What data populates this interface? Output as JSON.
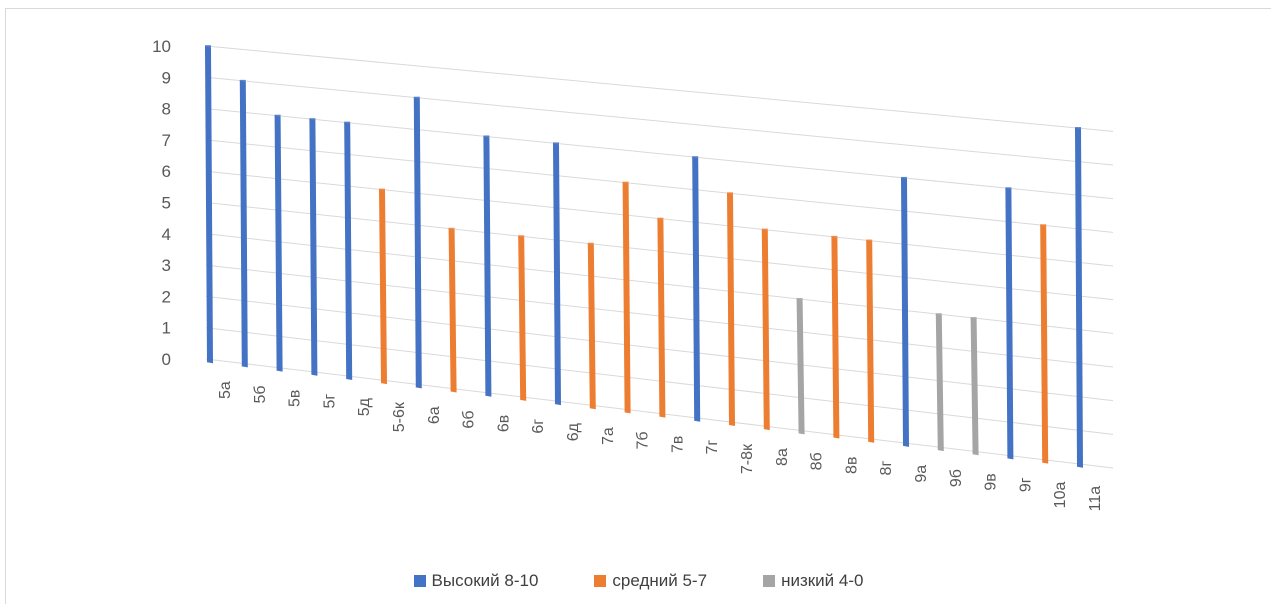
{
  "chart_data": {
    "type": "bar",
    "title": "",
    "xlabel": "",
    "ylabel": "",
    "ylim": [
      0,
      10
    ],
    "yticks": [
      "0",
      "1",
      "2",
      "3",
      "4",
      "5",
      "6",
      "7",
      "8",
      "9",
      "10"
    ],
    "grid": true,
    "legend_position": "bottom",
    "categories": [
      "5а",
      "5б",
      "5в",
      "5г",
      "5д",
      "5-6к",
      "6а",
      "6б",
      "6в",
      "6г",
      "6д",
      "7а",
      "7б",
      "7в",
      "7г",
      "7-8к",
      "8а",
      "8б",
      "8в",
      "8г",
      "9а",
      "9б",
      "9в",
      "9г",
      "10а",
      "11а"
    ],
    "values": [
      10,
      9,
      8,
      8,
      8,
      6,
      9,
      5,
      8,
      5,
      8,
      5,
      7,
      6,
      8,
      7,
      6,
      4,
      6,
      6,
      8,
      4,
      4,
      8,
      7,
      10
    ],
    "groups": [
      "high",
      "high",
      "high",
      "high",
      "high",
      "mid",
      "high",
      "mid",
      "high",
      "mid",
      "high",
      "mid",
      "mid",
      "mid",
      "high",
      "mid",
      "mid",
      "low",
      "mid",
      "mid",
      "high",
      "low",
      "low",
      "high",
      "mid",
      "high"
    ],
    "series": [
      {
        "key": "high",
        "name": "Высокий 8-10",
        "color": "#4472c4"
      },
      {
        "key": "mid",
        "name": "средний 5-7",
        "color": "#ed7d31"
      },
      {
        "key": "low",
        "name": "низкий 4-0",
        "color": "#a5a5a5"
      }
    ]
  }
}
